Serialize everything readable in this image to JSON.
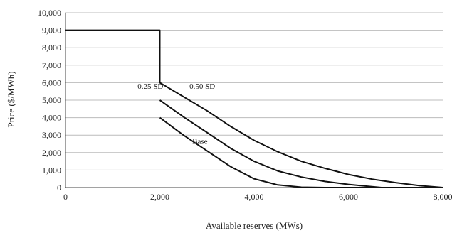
{
  "chart_data": {
    "type": "line",
    "title": "",
    "xlabel": "Available reserves (MWs)",
    "ylabel": "Price ($/MWh)",
    "xlim": [
      0,
      8000
    ],
    "ylim": [
      0,
      10000
    ],
    "x_ticks": [
      0,
      2000,
      4000,
      6000,
      8000
    ],
    "x_tick_labels": [
      "0",
      "2,000",
      "4,000",
      "6,000",
      "8,000"
    ],
    "y_ticks": [
      0,
      1000,
      2000,
      3000,
      4000,
      5000,
      6000,
      7000,
      8000,
      9000,
      10000
    ],
    "y_tick_labels": [
      "0",
      "1,000",
      "2,000",
      "3,000",
      "4,000",
      "5,000",
      "6,000",
      "7,000",
      "8,000",
      "9,000",
      "10,000"
    ],
    "grid": "horizontal",
    "series": [
      {
        "x": [
          0,
          2000,
          2000,
          2500,
          3000,
          3500,
          4000,
          4500,
          5000,
          5500,
          6000,
          6500,
          7000,
          7500,
          8000
        ],
        "y": [
          9000,
          9000,
          6000,
          5200,
          4400,
          3500,
          2700,
          2050,
          1500,
          1100,
          750,
          480,
          280,
          110,
          0
        ]
      },
      {
        "x": [
          2000,
          2500,
          3000,
          3500,
          4000,
          4500,
          5000,
          5500,
          6000,
          6700,
          8000
        ],
        "y": [
          5000,
          4050,
          3150,
          2250,
          1500,
          950,
          600,
          350,
          180,
          0,
          0
        ]
      },
      {
        "x": [
          2000,
          2500,
          3000,
          3500,
          4000,
          4500,
          5000,
          5500,
          6000,
          8000
        ],
        "y": [
          4000,
          3000,
          2100,
          1200,
          500,
          150,
          20,
          0,
          0,
          0
        ]
      }
    ],
    "annotations": [
      {
        "text": "0.25 SD",
        "x": 1800,
        "y": 5650
      },
      {
        "text": "0.50 SD",
        "x": 2900,
        "y": 5650
      },
      {
        "text": "Base",
        "x": 2850,
        "y": 2500
      }
    ],
    "colors": {
      "line": "#111111",
      "grid": "#bcbcbc",
      "axis": "#444444"
    }
  }
}
